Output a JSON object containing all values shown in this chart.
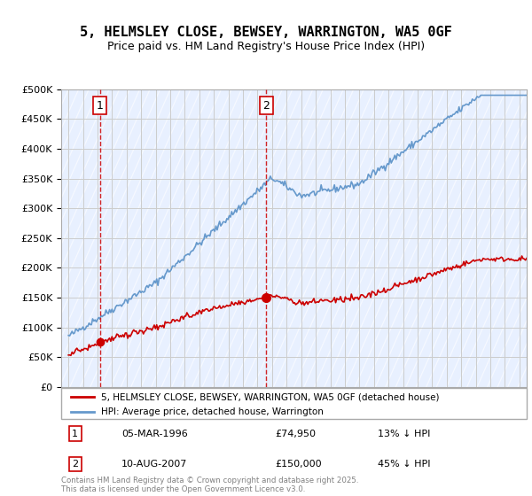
{
  "title": "5, HELMSLEY CLOSE, BEWSEY, WARRINGTON, WA5 0GF",
  "subtitle": "Price paid vs. HM Land Registry's House Price Index (HPI)",
  "legend_property": "5, HELMSLEY CLOSE, BEWSEY, WARRINGTON, WA5 0GF (detached house)",
  "legend_hpi": "HPI: Average price, detached house, Warrington",
  "footnote": "Contains HM Land Registry data © Crown copyright and database right 2025.\nThis data is licensed under the Open Government Licence v3.0.",
  "point1_label": "1",
  "point1_date": "05-MAR-1996",
  "point1_price": "£74,950",
  "point1_hpi": "13% ↓ HPI",
  "point1_x": 1996.17,
  "point1_y": 74950,
  "point2_label": "2",
  "point2_date": "10-AUG-2007",
  "point2_price": "£150,000",
  "point2_hpi": "45% ↓ HPI",
  "point2_x": 2007.61,
  "point2_y": 150000,
  "ylim": [
    0,
    500000
  ],
  "xlim": [
    1993.5,
    2025.5
  ],
  "property_color": "#cc0000",
  "hpi_color": "#6699cc",
  "bg_plot_color": "#e8f0ff",
  "grid_color": "#cccccc",
  "dashed_line_color": "#cc0000"
}
